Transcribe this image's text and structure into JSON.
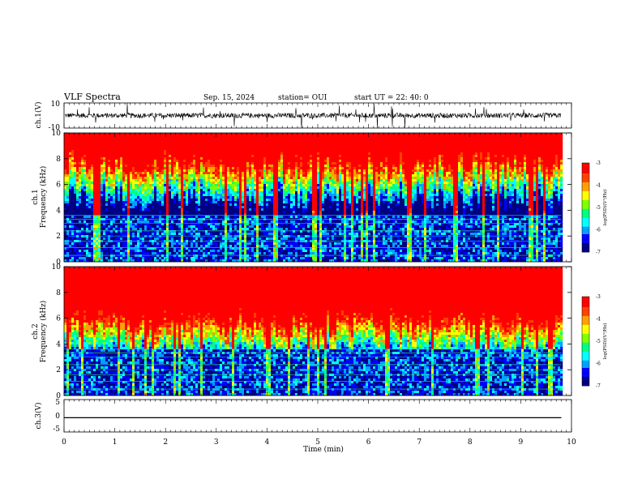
{
  "header": {
    "title": "VLF Spectra",
    "date": "Sep. 15, 2024",
    "station": "station= OUI",
    "start": "start  UT =   22: 40: 0"
  },
  "chart_data": [
    {
      "type": "line",
      "panel": "ch1-waveform",
      "ylabel": "ch.1(V)",
      "yticklabels": [
        "10",
        "-10"
      ],
      "ylim": [
        -10,
        10
      ],
      "xlim": [
        0,
        10
      ],
      "description_values": {
        "baseline": 0,
        "typical_amplitude": 2,
        "max_spike": 10
      },
      "color": "#000000"
    },
    {
      "type": "heatmap",
      "panel": "ch1-spectrogram",
      "ylabel": "ch.1\nFrequency (kHz)",
      "ylabel_lines": [
        "ch.1",
        "Frequency (kHz)"
      ],
      "yticklabels": [
        "0",
        "2",
        "4",
        "6",
        "8",
        "10"
      ],
      "ylim": [
        0,
        10
      ],
      "xlim": [
        0,
        9.8
      ],
      "colorbar": {
        "ticks": [
          "-3",
          "-4",
          "-5",
          "-6",
          "-7"
        ],
        "label": "log(PSD)(V²/Hz)",
        "range": [
          -7,
          -3
        ]
      },
      "transition_freq_khz": 6.3
    },
    {
      "type": "heatmap",
      "panel": "ch2-spectrogram",
      "ylabel_lines": [
        "ch.2",
        "Frequency (kHz)"
      ],
      "yticklabels": [
        "0",
        "2",
        "4",
        "6",
        "8",
        "10"
      ],
      "ylim": [
        0,
        10
      ],
      "xlim": [
        0,
        9.8
      ],
      "colorbar": {
        "ticks": [
          "-3",
          "-4",
          "-5",
          "-6",
          "-7"
        ],
        "label": "log(PSD)(V²/Hz)",
        "range": [
          -7,
          -3
        ]
      },
      "transition_freq_khz": 4.3
    },
    {
      "type": "line",
      "panel": "ch3-waveform",
      "ylabel": "ch.3(V)",
      "yticklabels": [
        "5",
        "0",
        "-5"
      ],
      "ylim": [
        -5,
        5
      ],
      "xlim": [
        0,
        10
      ],
      "x": [
        0,
        9.8
      ],
      "y": [
        -0.6,
        -0.6
      ],
      "color": "#000000"
    }
  ],
  "xaxis": {
    "label": "Time (min)",
    "ticklabels": [
      "0",
      "1",
      "2",
      "3",
      "4",
      "5",
      "6",
      "7",
      "8",
      "9",
      "10"
    ],
    "range": [
      0,
      10
    ]
  },
  "colormap": [
    "#000080",
    "#0000ff",
    "#00a0ff",
    "#00ffff",
    "#00ff80",
    "#80ff00",
    "#ffff00",
    "#ffa000",
    "#ff4000",
    "#ff0000"
  ]
}
